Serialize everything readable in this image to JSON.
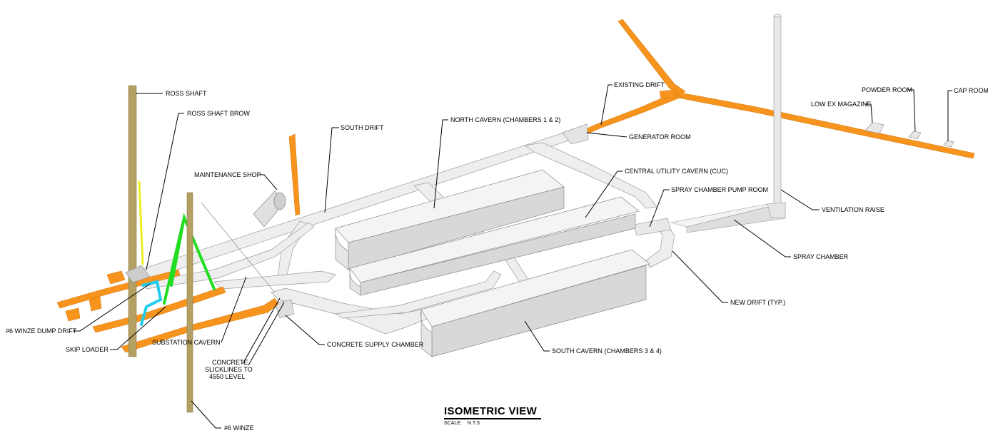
{
  "title": "ISOMETRIC VIEW",
  "scale_label": "SCALE:",
  "scale_value": "N.T.S.",
  "colors": {
    "existing_drift": "#f7941d",
    "shaft": "#b5a064",
    "cavern_fill": "#f2f2f2",
    "cavern_side": "#dcdcdc",
    "ventilation": "#e6e6e6",
    "green_feature": "#22dd22",
    "cyan_feature": "#22ccee",
    "yellow_feature": "#eeee22"
  },
  "labels": {
    "ross_shaft": "ROSS SHAFT",
    "ross_shaft_brow": "ROSS SHAFT BROW",
    "maintenance_shop": "MAINTENANCE SHOP",
    "south_drift": "SOUTH DRIFT",
    "north_cavern": "NORTH CAVERN (CHAMBERS 1 & 2)",
    "existing_drift": "EXISTING DRIFT",
    "generator_room": "GENERATOR ROOM",
    "central_utility": "CENTRAL UTILITY CAVERN (CUC)",
    "spray_pump_room": "SPRAY CHAMBER PUMP ROOM",
    "ventilation_raise": "VENTILATION RAISE",
    "spray_chamber": "SPRAY CHAMBER",
    "new_drift": "NEW DRIFT (TYP.)",
    "south_cavern": "SOUTH CAVERN (CHAMBERS 3 & 4)",
    "concrete_supply": "CONCRETE SUPPLY CHAMBER",
    "concrete_line1": "CONCRETE",
    "concrete_line2": "SLICKLINES TO",
    "concrete_line3": "4550 LEVEL",
    "substation": "SUBSTATION CAVERN",
    "winze_dump_drift": "#6 WINZE DUMP DRIFT",
    "skip_loader": "SKIP LOADER",
    "winze6": "#6 WINZE",
    "low_ex_magazine": "LOW EX MAGAZINE",
    "powder_room": "POWDER ROOM",
    "cap_room": "CAP ROOM"
  }
}
